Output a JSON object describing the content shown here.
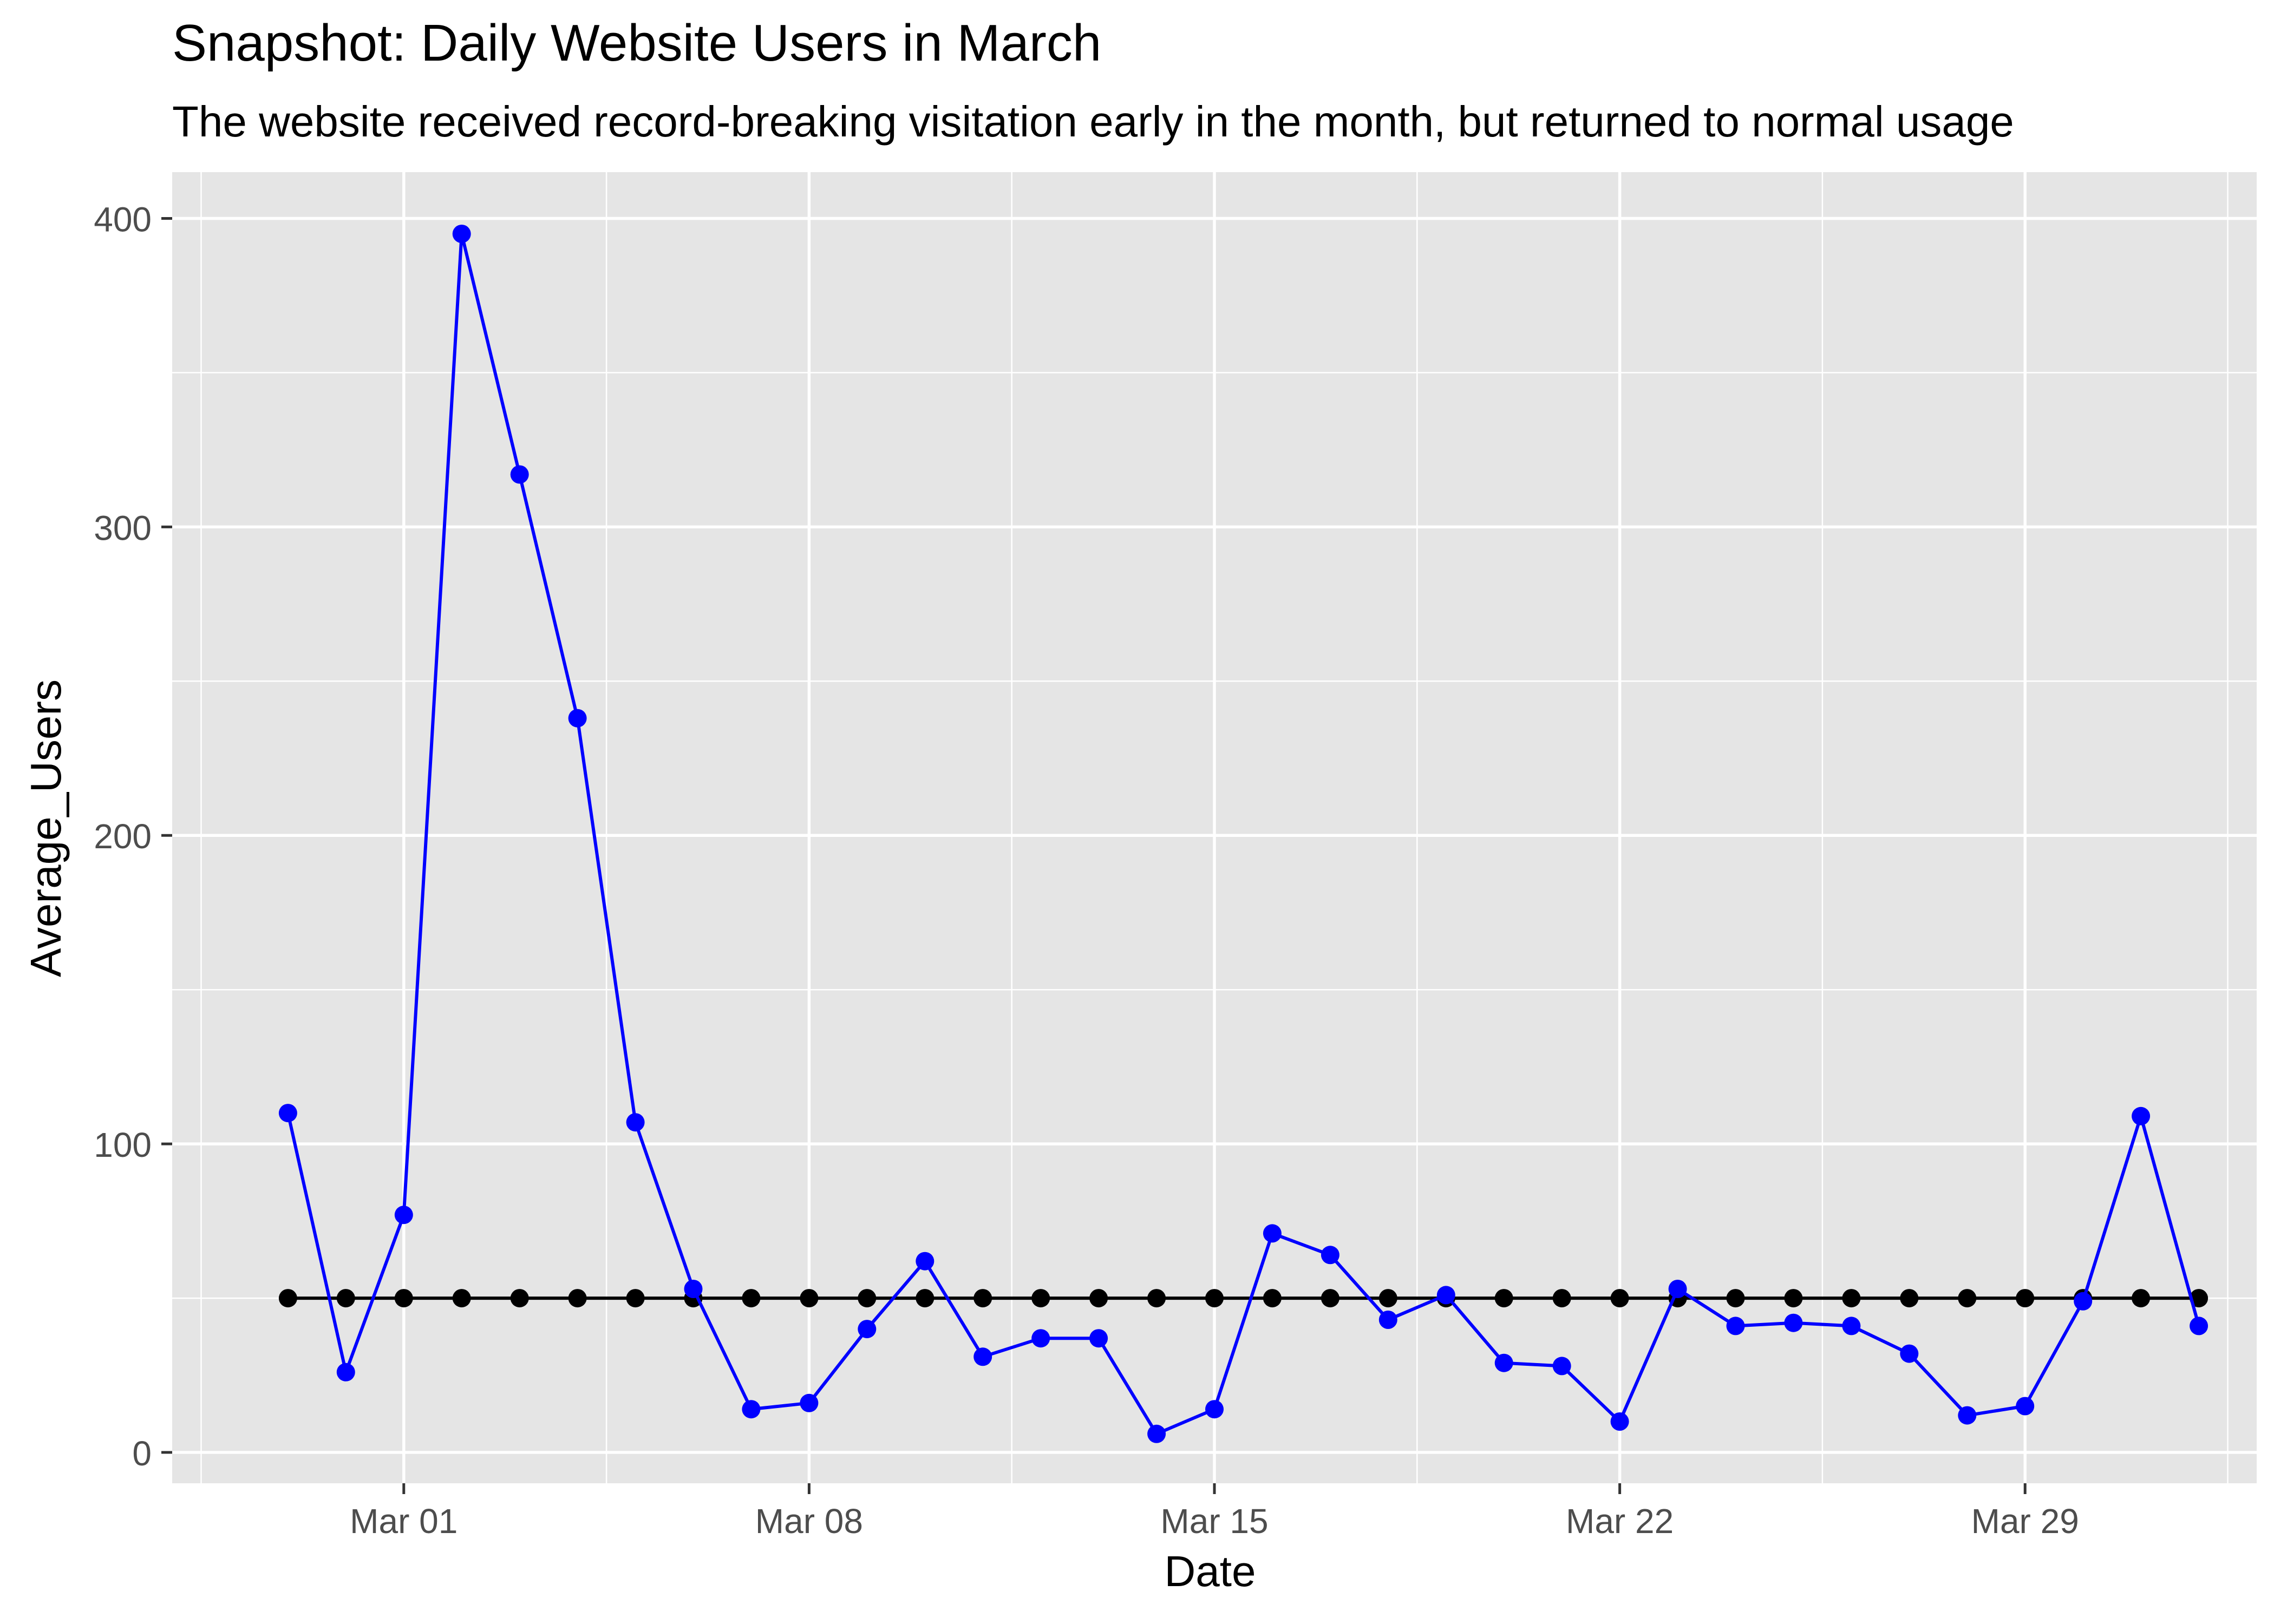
{
  "chart_data": {
    "type": "line",
    "title": "Snapshot: Daily Website Users in March",
    "subtitle": "The website received record-breaking visitation early in the month, but returned to normal usage",
    "xlabel": "Date",
    "ylabel": "Average_Users",
    "x_tick_labels": [
      "Mar 01",
      "Mar 08",
      "Mar 15",
      "Mar 22",
      "Mar 29"
    ],
    "y_tick_labels": [
      "0",
      "100",
      "200",
      "300",
      "400"
    ],
    "ylim": [
      -10,
      415
    ],
    "xlim": [
      "2023-02-25",
      "2023-04-02"
    ],
    "grid": true,
    "x": [
      "2023-02-27",
      "2023-02-28",
      "2023-03-01",
      "2023-03-02",
      "2023-03-03",
      "2023-03-04",
      "2023-03-05",
      "2023-03-06",
      "2023-03-07",
      "2023-03-08",
      "2023-03-09",
      "2023-03-10",
      "2023-03-11",
      "2023-03-12",
      "2023-03-13",
      "2023-03-14",
      "2023-03-15",
      "2023-03-16",
      "2023-03-17",
      "2023-03-18",
      "2023-03-19",
      "2023-03-20",
      "2023-03-21",
      "2023-03-22",
      "2023-03-23",
      "2023-03-24",
      "2023-03-25",
      "2023-03-26",
      "2023-03-27",
      "2023-03-28",
      "2023-03-29",
      "2023-03-30",
      "2023-03-31",
      "2023-04-01"
    ],
    "series": [
      {
        "color": "#0000ff",
        "values": [
          110,
          26,
          77,
          395,
          317,
          238,
          107,
          53,
          14,
          16,
          40,
          62,
          31,
          37,
          37,
          6,
          14,
          71,
          64,
          43,
          51,
          29,
          28,
          10,
          53,
          41,
          42,
          41,
          32,
          12,
          15,
          49,
          109,
          41
        ]
      },
      {
        "color": "#000000",
        "values": [
          50,
          50,
          50,
          50,
          50,
          50,
          50,
          50,
          50,
          50,
          50,
          50,
          50,
          50,
          50,
          50,
          50,
          50,
          50,
          50,
          50,
          50,
          50,
          50,
          50,
          50,
          50,
          50,
          50,
          50,
          50,
          50,
          50,
          50
        ]
      }
    ],
    "colors": {
      "panel_background": "#e5e5e5",
      "grid": "#ffffff",
      "tick_text": "#4d4d4d",
      "axis_tick": "#333333"
    }
  }
}
